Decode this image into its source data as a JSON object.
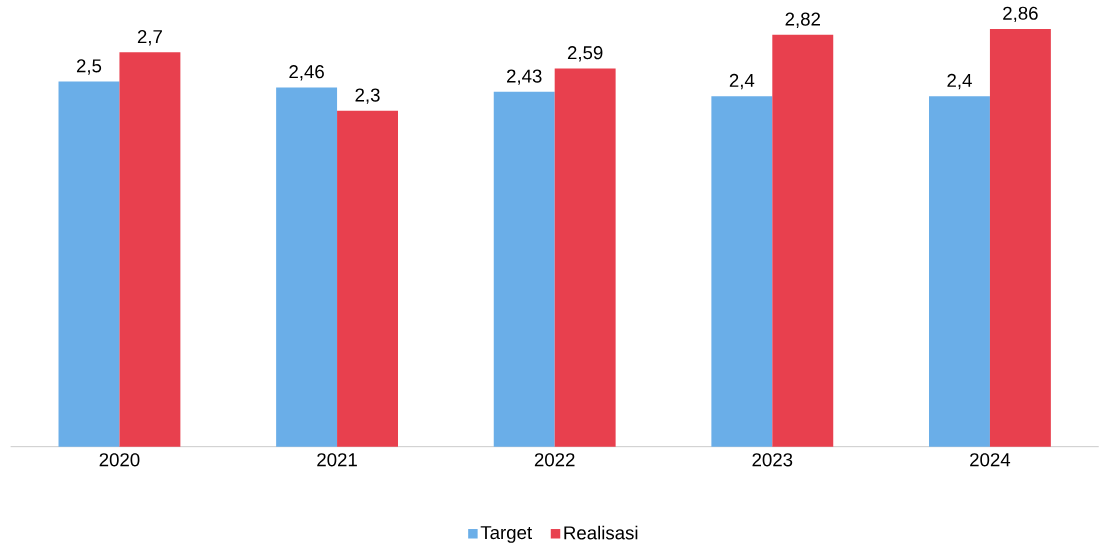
{
  "chart_data": {
    "type": "bar",
    "categories": [
      "2020",
      "2021",
      "2022",
      "2023",
      "2024"
    ],
    "series": [
      {
        "name": "Target",
        "color": "#6aaee8",
        "values": [
          2.5,
          2.46,
          2.43,
          2.4,
          2.4
        ],
        "value_labels": [
          "2,5",
          "2,46",
          "2,43",
          "2,4",
          "2,4"
        ]
      },
      {
        "name": "Realisasi",
        "color": "#e8404e",
        "values": [
          2.7,
          2.3,
          2.59,
          2.82,
          2.86
        ],
        "value_labels": [
          "2,7",
          "2,3",
          "2,59",
          "2,82",
          "2,86"
        ]
      }
    ],
    "tick_labels": "x",
    "legend": "bottom"
  }
}
